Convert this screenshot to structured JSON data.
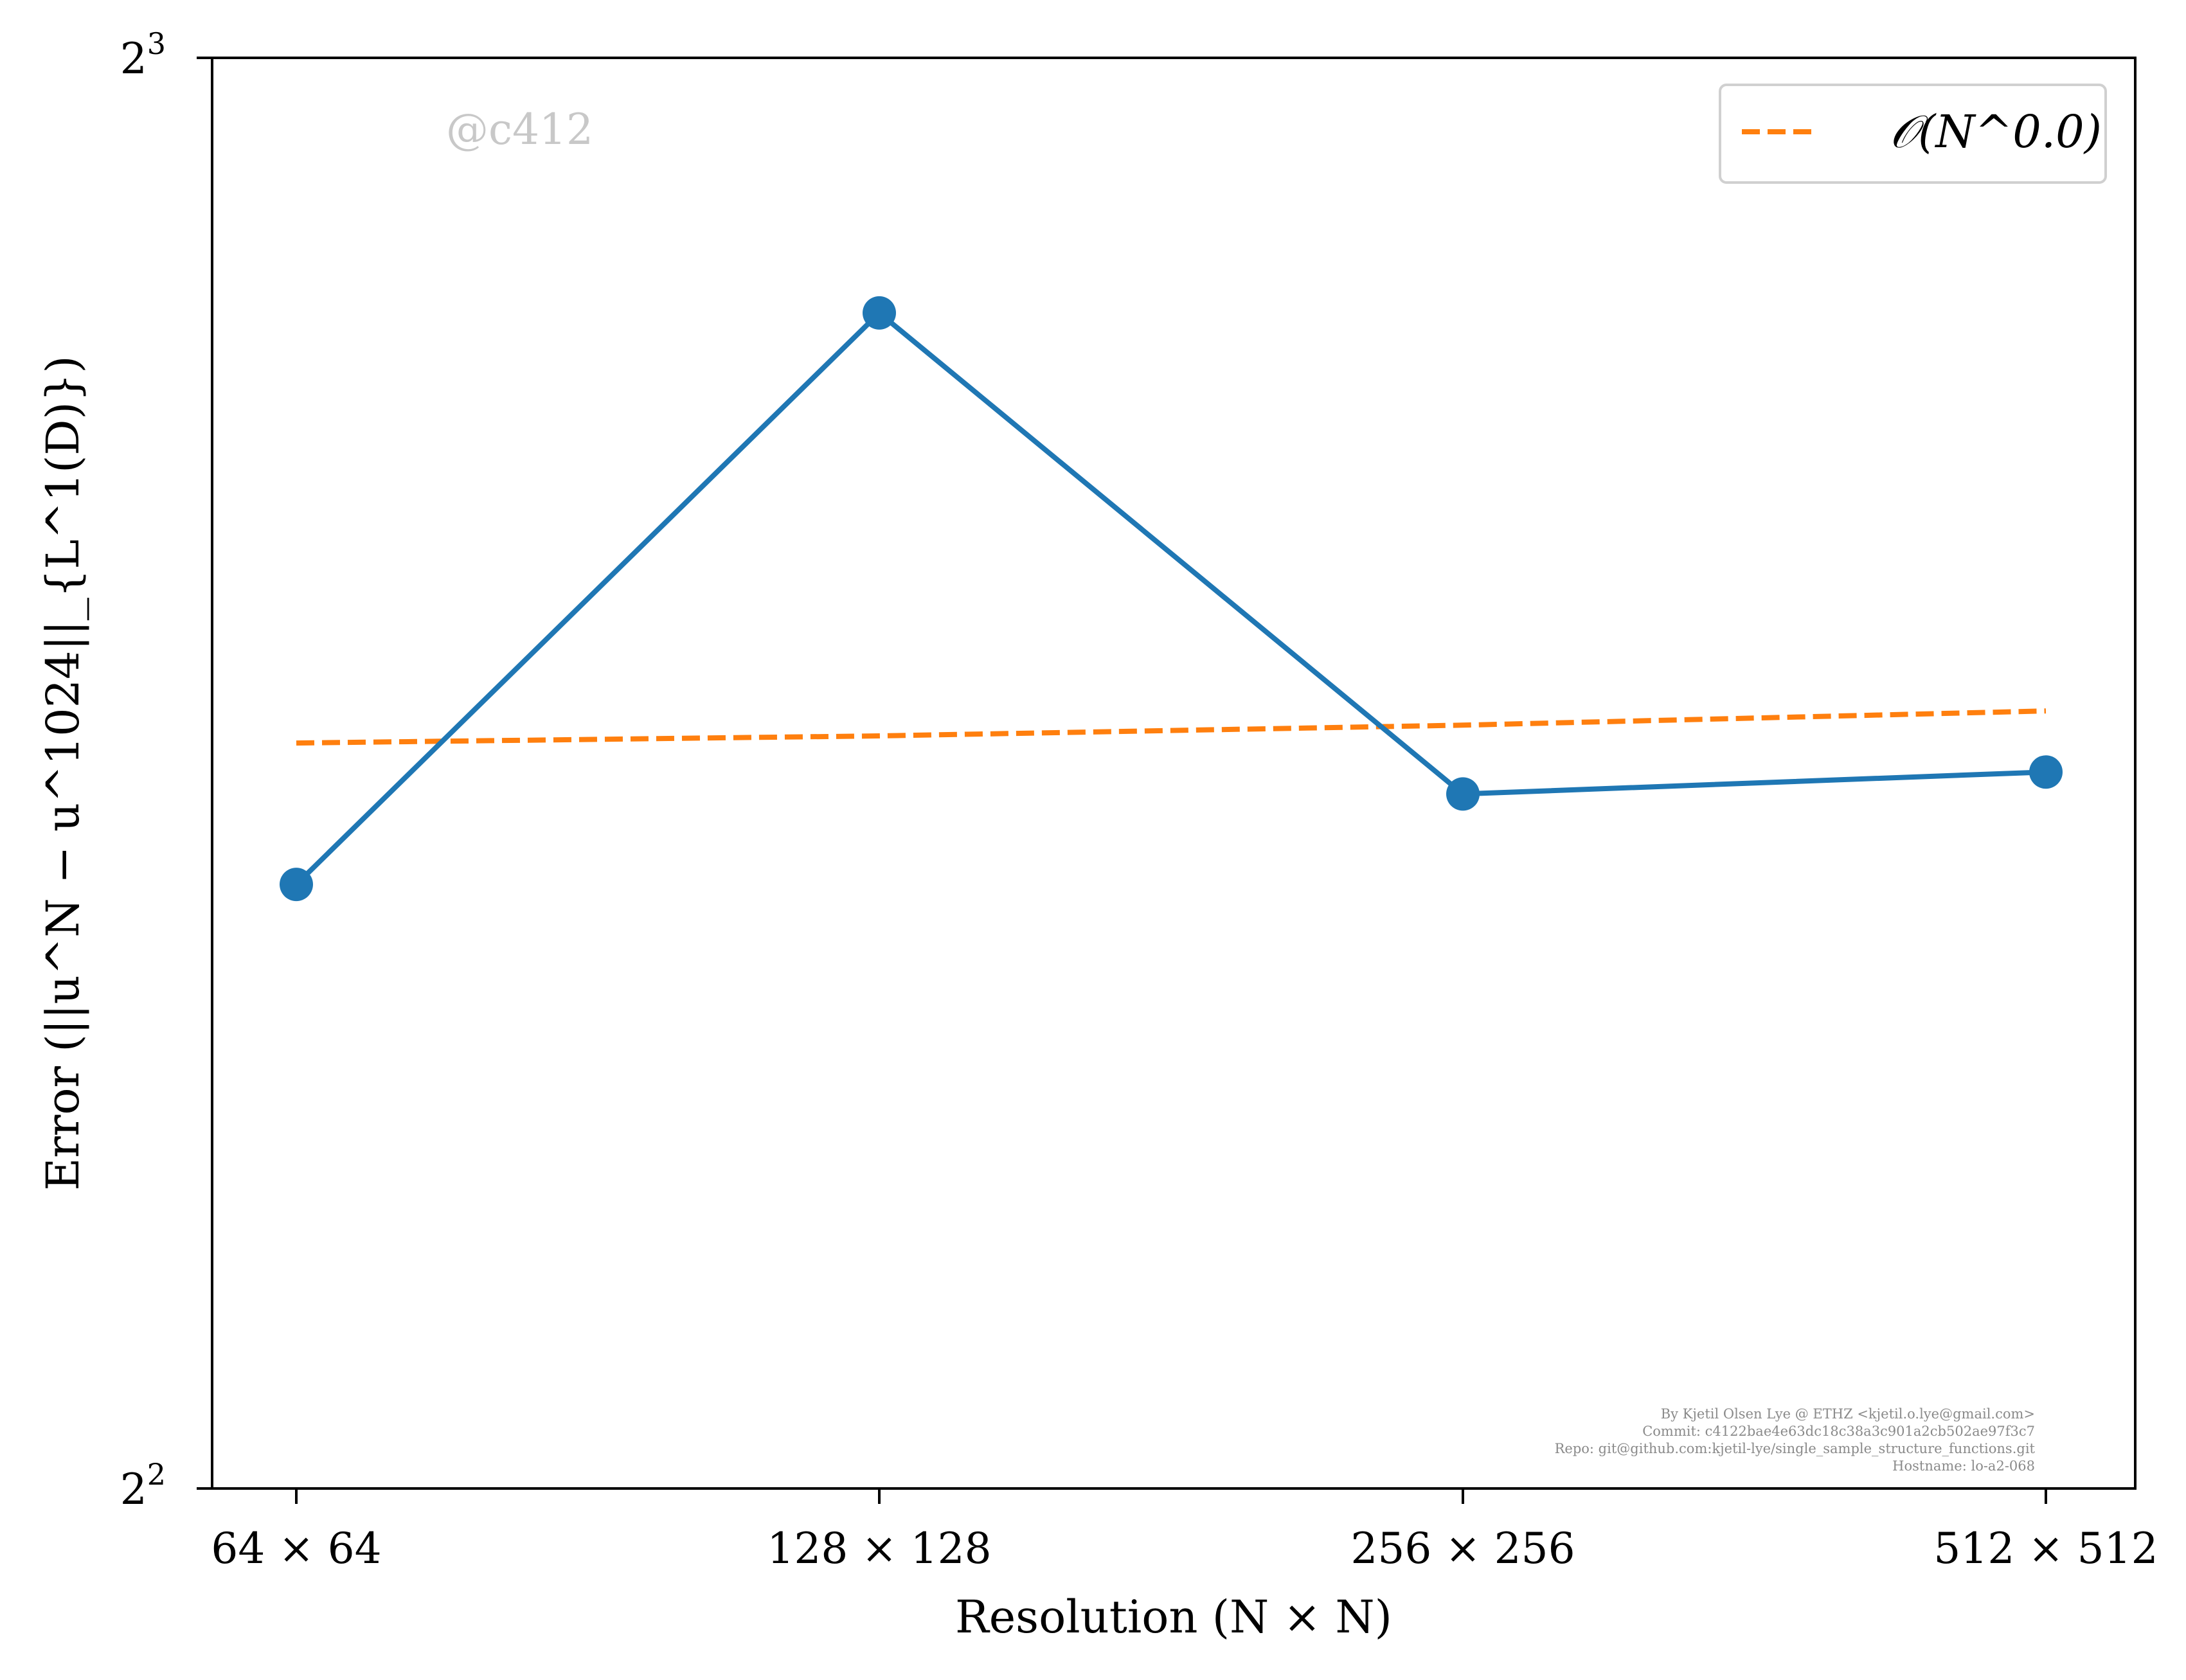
{
  "chart_data": {
    "type": "line",
    "categories": [
      "64 × 64",
      "128 × 128",
      "256 × 256",
      "512 × 512"
    ],
    "x": [
      64,
      128,
      256,
      512
    ],
    "series": [
      {
        "values": [
          5.36,
          7.07,
          5.6,
          5.66
        ],
        "color": "#1f77b4",
        "marker": "circle",
        "style": "solid"
      },
      {
        "name": "𝒪(N^0.0)",
        "values": [
          5.74,
          5.76,
          5.79,
          5.83
        ],
        "color": "#ff7f0e",
        "style": "dashed"
      }
    ],
    "title": "",
    "xlabel": "Resolution (N × N)",
    "ylabel": "Error (||u^N − u^1024||_{L^1(D)})",
    "yscale": "log2",
    "ylim": [
      4,
      8
    ],
    "yticks": [
      {
        "value": 4,
        "base": "2",
        "exp": "2"
      },
      {
        "value": 8,
        "base": "2",
        "exp": "3"
      }
    ],
    "grid": false,
    "legend_position": "top-right",
    "watermark": "@c412",
    "footer": [
      "By Kjetil Olsen Lye @ ETHZ <kjetil.o.lye@gmail.com>",
      "Commit: c4122bae4e63dc18c38a3c901a2cb502ae97f3c7",
      "Repo: git@github.com:kjetil-lye/single_sample_structure_functions.git",
      "Hostname: lo-a2-068"
    ]
  }
}
